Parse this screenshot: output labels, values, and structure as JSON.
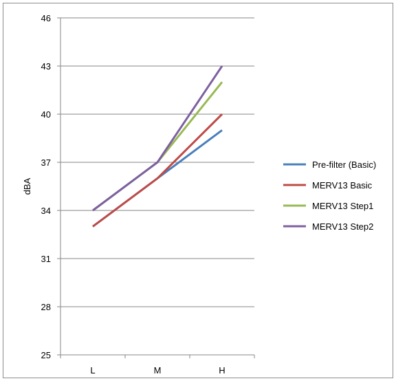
{
  "chart_data": {
    "type": "line",
    "title": "",
    "xlabel": "",
    "ylabel": "dBA",
    "categories": [
      "L",
      "M",
      "H"
    ],
    "ylim": [
      25,
      46
    ],
    "yticks": [
      25,
      28,
      31,
      34,
      37,
      40,
      43,
      46
    ],
    "grid": "horizontal",
    "legend_position": "right",
    "series": [
      {
        "name": "Pre-filter (Basic)",
        "values": [
          33,
          36,
          39
        ],
        "color": "#4a7ebb"
      },
      {
        "name": "MERV13 Basic",
        "values": [
          33,
          36,
          40
        ],
        "color": "#be4b48"
      },
      {
        "name": "MERV13 Step1",
        "values": [
          34,
          37,
          42
        ],
        "color": "#98b954"
      },
      {
        "name": "MERV13 Step2",
        "values": [
          34,
          37,
          43
        ],
        "color": "#7d60a0"
      }
    ]
  }
}
